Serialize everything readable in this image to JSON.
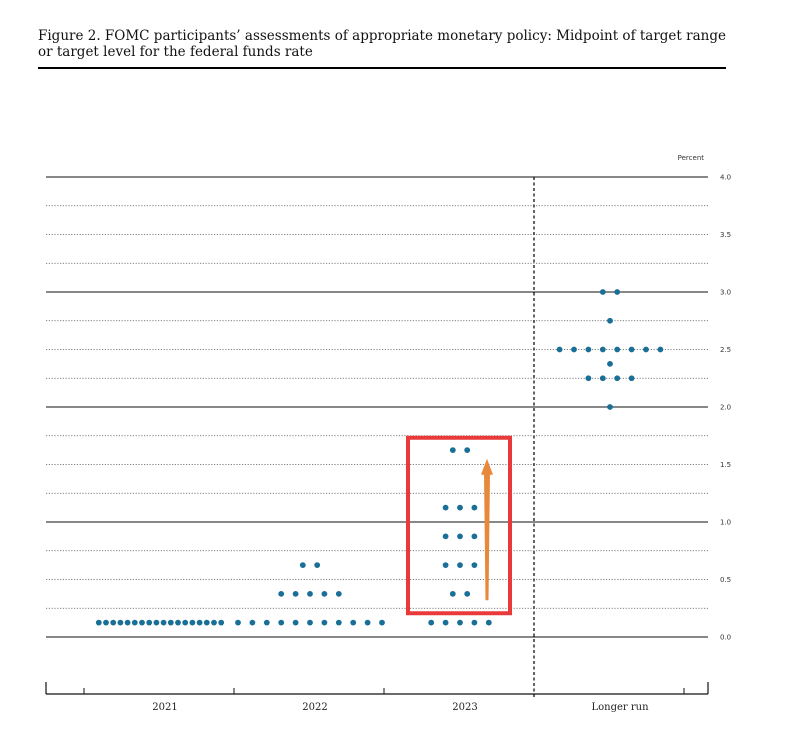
{
  "figure": {
    "title": "Figure 2.  FOMC participants’ assessments of appropriate monetary policy: Midpoint of target range or target level for the federal funds rate"
  },
  "chart_data": {
    "type": "scatter",
    "title": "Figure 2.  FOMC participants’ assessments of appropriate monetary policy: Midpoint of target range or target level for the federal funds rate",
    "ylabel": "Percent",
    "ylim": [
      0.0,
      4.0
    ],
    "yticks": [
      "4.0",
      "3.5",
      "3.0",
      "2.5",
      "2.0",
      "1.5",
      "1.0",
      "0.5",
      "0.0"
    ],
    "categories": [
      "2021",
      "2022",
      "2023",
      "Longer run"
    ],
    "grid": true,
    "dot_color": "#1a6f96",
    "points": [
      {
        "category": "2021",
        "y": 0.125,
        "count": 18
      },
      {
        "category": "2022",
        "y": 0.125,
        "count": 11
      },
      {
        "category": "2022",
        "y": 0.375,
        "count": 5
      },
      {
        "category": "2022",
        "y": 0.625,
        "count": 2
      },
      {
        "category": "2023",
        "y": 0.125,
        "count": 5
      },
      {
        "category": "2023",
        "y": 0.375,
        "count": 2
      },
      {
        "category": "2023",
        "y": 0.625,
        "count": 3
      },
      {
        "category": "2023",
        "y": 0.875,
        "count": 3
      },
      {
        "category": "2023",
        "y": 1.125,
        "count": 3
      },
      {
        "category": "2023",
        "y": 1.625,
        "count": 2
      },
      {
        "category": "Longer run",
        "y": 2.0,
        "count": 1
      },
      {
        "category": "Longer run",
        "y": 2.25,
        "count": 4
      },
      {
        "category": "Longer run",
        "y": 2.375,
        "count": 1
      },
      {
        "category": "Longer run",
        "y": 2.5,
        "count": 8
      },
      {
        "category": "Longer run",
        "y": 2.75,
        "count": 1
      },
      {
        "category": "Longer run",
        "y": 3.0,
        "count": 2
      }
    ],
    "annotations": {
      "highlight_box": {
        "category": "2023",
        "y_range": [
          0.25,
          1.75
        ],
        "color": "#e83a3a"
      },
      "arrow": {
        "category": "2023",
        "from_y": 0.25,
        "to_y": 1.55,
        "color": "#e8883a"
      }
    }
  }
}
